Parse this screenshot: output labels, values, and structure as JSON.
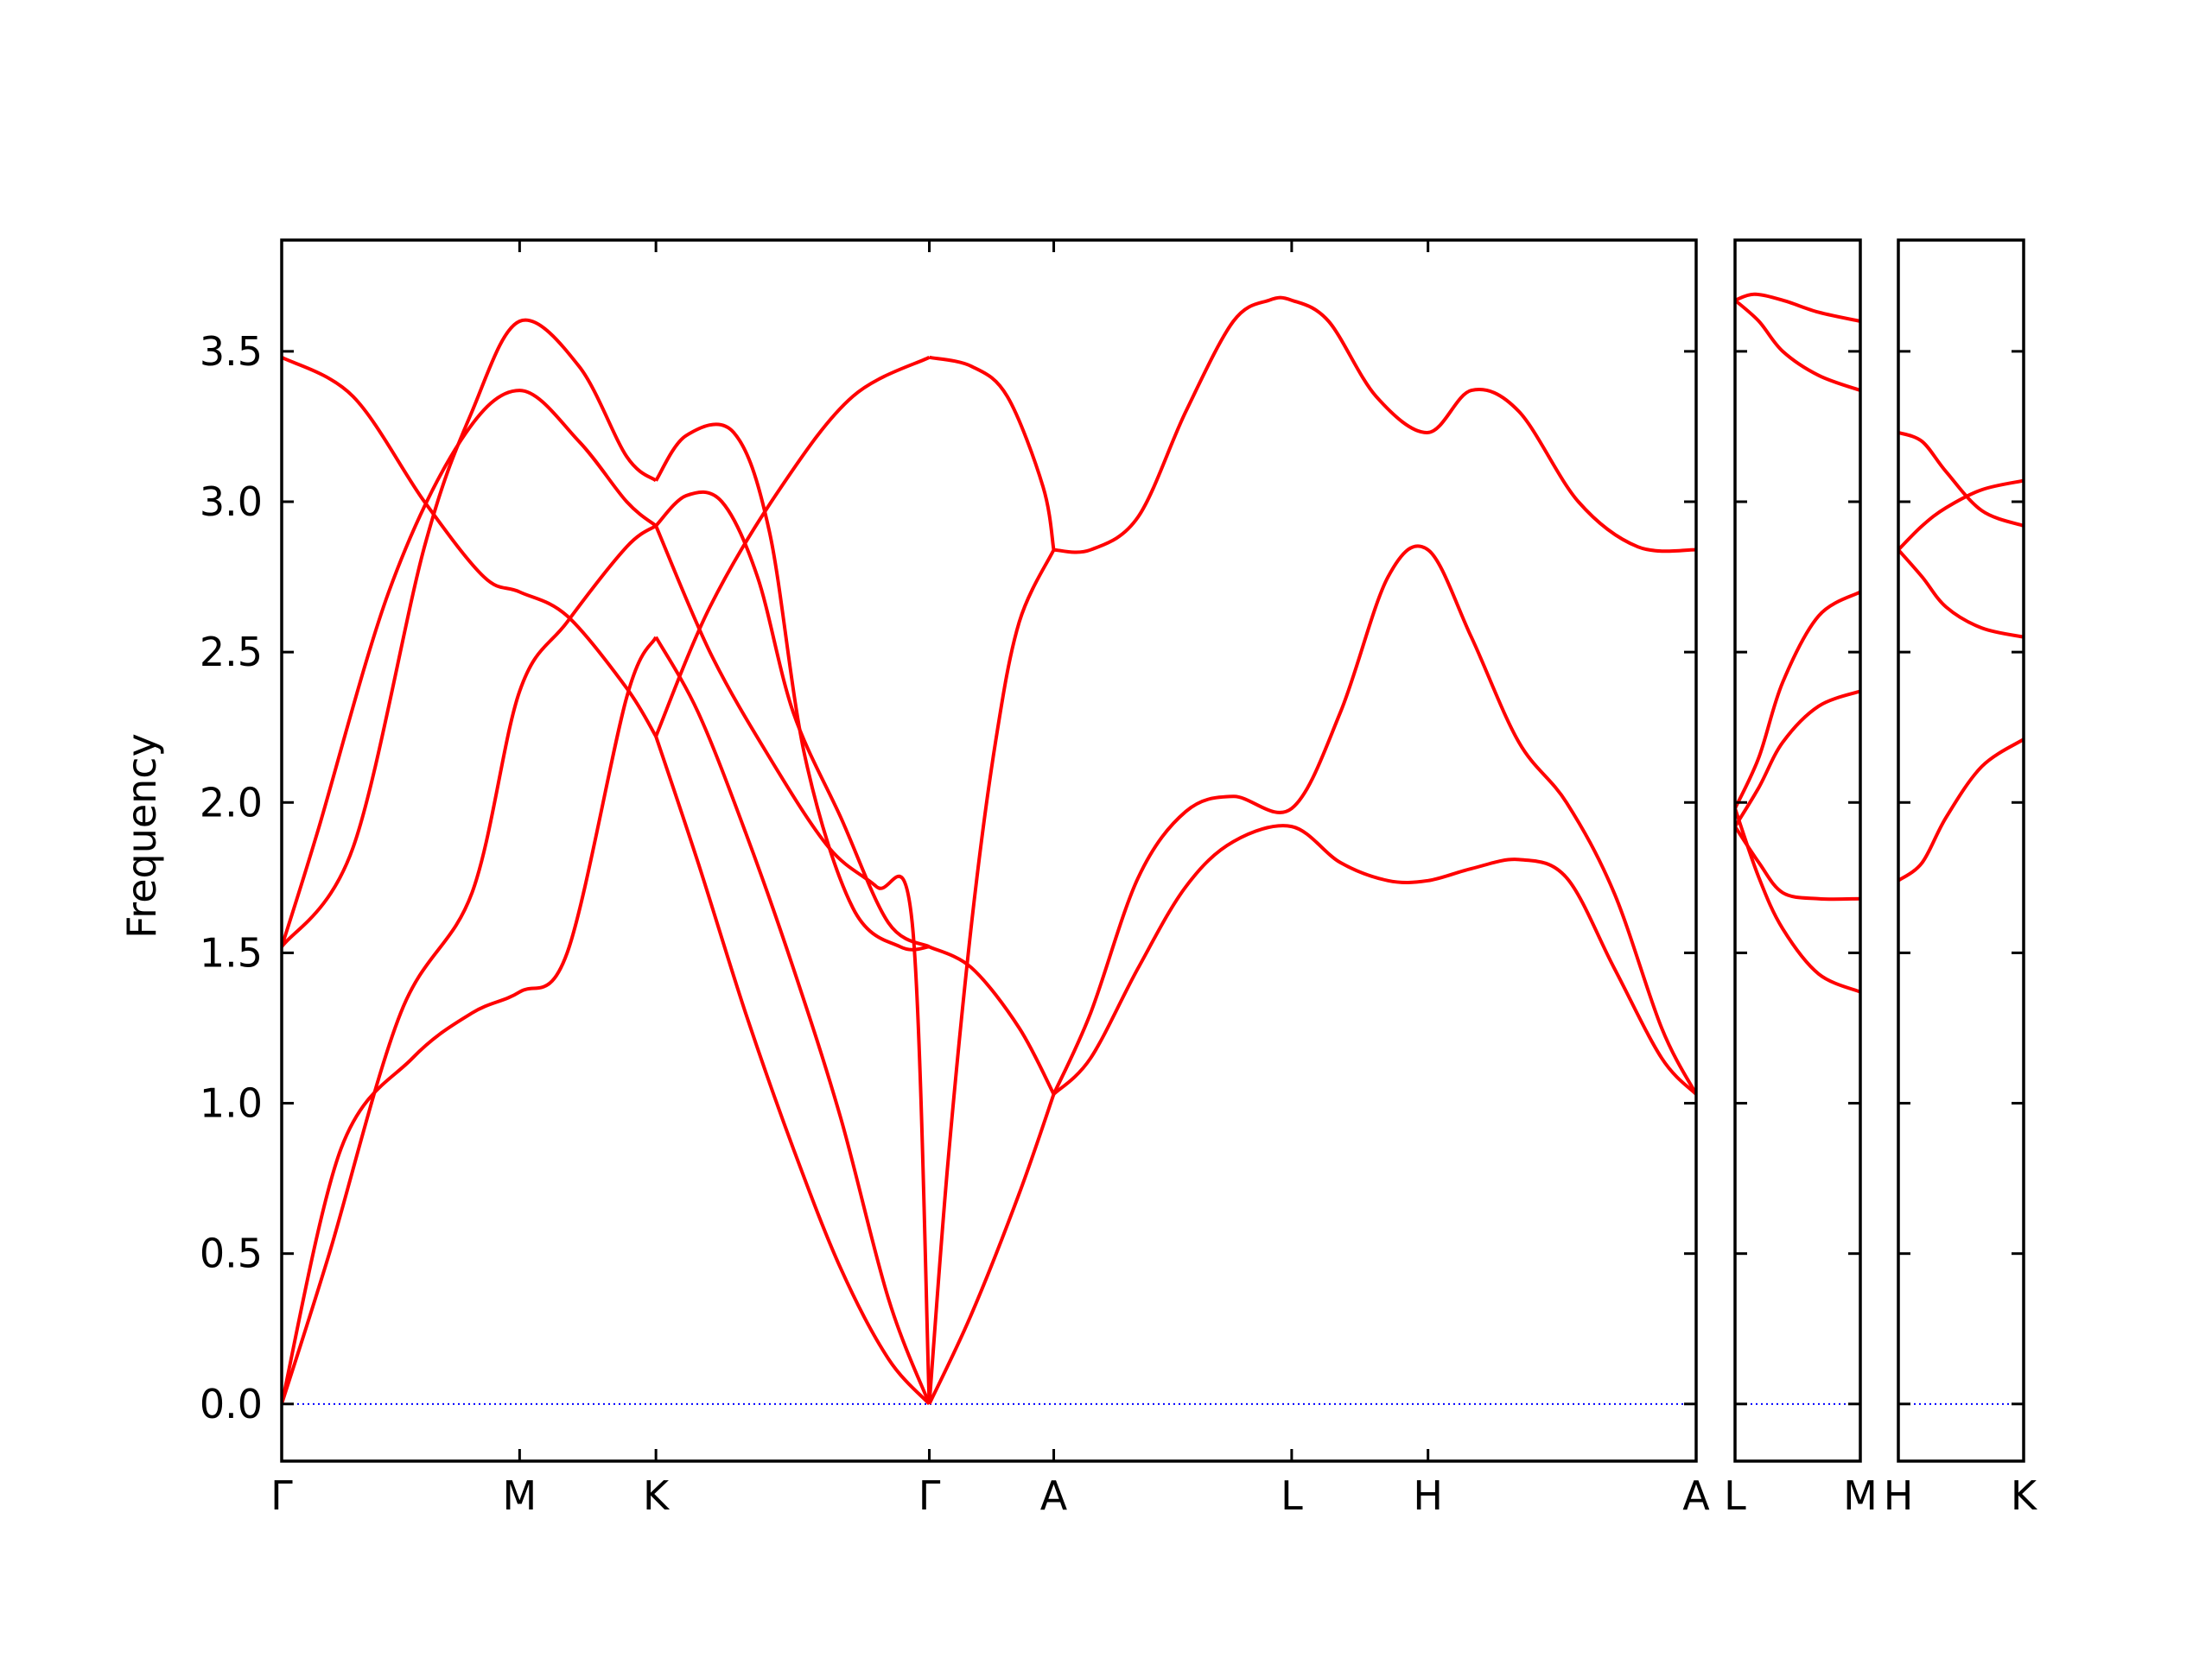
{
  "chart_data": {
    "type": "line",
    "title": "",
    "xlabel": "",
    "ylabel": "Frequency",
    "ylim": [
      -0.19,
      3.87
    ],
    "yticks": [
      0.0,
      0.5,
      1.0,
      1.5,
      2.0,
      2.5,
      3.0,
      3.5
    ],
    "ytick_labels": [
      "0.0",
      "0.5",
      "1.0",
      "1.5",
      "2.0",
      "2.5",
      "3.0",
      "3.5"
    ],
    "band_color": "#ff0000",
    "zero_line_color": "#0000ff",
    "panels": [
      {
        "x_range": [
          0,
          5.945
        ],
        "ticks": [
          {
            "x": 0,
            "label": "Γ"
          },
          {
            "x": 1.0,
            "label": "M"
          },
          {
            "x": 1.573,
            "label": "K"
          },
          {
            "x": 2.722,
            "label": "Γ"
          },
          {
            "x": 3.245,
            "label": "A"
          },
          {
            "x": 4.245,
            "label": "L"
          },
          {
            "x": 4.818,
            "label": "H"
          },
          {
            "x": 5.945,
            "label": "A"
          }
        ],
        "series": [
          {
            "x": [
              0,
              0.2,
              0.5,
              0.8,
              1.0,
              1.2,
              1.45,
              1.573
            ],
            "y": [
              0,
              0.5,
              1.3,
              1.7,
              2.37,
              2.6,
              2.85,
              2.92
            ]
          },
          {
            "x": [
              0,
              0.3,
              0.6,
              0.8,
              1.0,
              1.25,
              1.45,
              1.573
            ],
            "y": [
              1.52,
              1.85,
              2.85,
              3.3,
              3.6,
              3.45,
              3.15,
              3.07
            ]
          },
          {
            "x": [
              0,
              0.15,
              0.45,
              0.75,
              1.0,
              1.25,
              1.45,
              1.573
            ],
            "y": [
              1.52,
              1.9,
              2.7,
              3.2,
              3.37,
              3.2,
              3.0,
              2.92
            ]
          },
          {
            "x": [
              0,
              0.25,
              0.55,
              0.8,
              1.0,
              1.2,
              1.45,
              1.573
            ],
            "y": [
              0,
              0.85,
              1.15,
              1.3,
              1.37,
              1.5,
              2.35,
              2.55
            ]
          },
          {
            "x": [
              0,
              0.3,
              0.6,
              0.85,
              1.0,
              1.2,
              1.45,
              1.573
            ],
            "y": [
              3.48,
              3.35,
              3.0,
              2.75,
              2.7,
              2.62,
              2.38,
              2.22
            ]
          },
          {
            "x": [
              1.573,
              1.7,
              1.9,
              2.05,
              2.2,
              2.4,
              2.6,
              2.722
            ],
            "y": [
              3.07,
              3.22,
              3.23,
              2.9,
              2.15,
              1.65,
              1.52,
              1.52
            ]
          },
          {
            "x": [
              1.573,
              1.7,
              1.85,
              2.0,
              2.15,
              2.35,
              2.55,
              2.722
            ],
            "y": [
              2.92,
              3.02,
              3.0,
              2.75,
              2.3,
              1.95,
              1.6,
              1.52
            ]
          },
          {
            "x": [
              1.573,
              1.75,
              1.95,
              2.15,
              2.35,
              2.55,
              2.722
            ],
            "y": [
              2.55,
              2.3,
              1.9,
              1.45,
              0.95,
              0.35,
              0
            ]
          },
          {
            "x": [
              1.573,
              1.75,
              1.95,
              2.15,
              2.35,
              2.55,
              2.722
            ],
            "y": [
              2.22,
              1.8,
              1.3,
              0.85,
              0.45,
              0.15,
              0
            ]
          },
          {
            "x": [
              1.573,
              1.8,
              2.05,
              2.3,
              2.5,
              2.65,
              2.722
            ],
            "y": [
              2.92,
              2.5,
              2.15,
              1.85,
              1.72,
              1.6,
              0
            ]
          },
          {
            "x": [
              1.573,
              1.8,
              2.1,
              2.4,
              2.722
            ],
            "y": [
              2.22,
              2.65,
              3.05,
              3.35,
              3.48
            ]
          },
          {
            "x": [
              2.722,
              2.9,
              3.05,
              3.2,
              3.245
            ],
            "y": [
              3.48,
              3.45,
              3.35,
              3.05,
              2.84
            ]
          },
          {
            "x": [
              2.722,
              2.9,
              3.1,
              3.245
            ],
            "y": [
              1.52,
              1.45,
              1.25,
              1.03
            ]
          },
          {
            "x": [
              2.722,
              2.8,
              2.9,
              3.0,
              3.1,
              3.245
            ],
            "y": [
              0,
              0.8,
              1.6,
              2.2,
              2.6,
              2.84
            ]
          },
          {
            "x": [
              2.722,
              2.9,
              3.1,
              3.245
            ],
            "y": [
              0,
              0.3,
              0.7,
              1.03
            ]
          },
          {
            "x": [
              3.245,
              3.4,
              3.6,
              3.8,
              4.0,
              4.15,
              4.245,
              4.4,
              4.6,
              4.818,
              5.0,
              5.2,
              5.45,
              5.7,
              5.945
            ],
            "y": [
              2.84,
              2.84,
              2.95,
              3.3,
              3.6,
              3.67,
              3.67,
              3.6,
              3.35,
              3.23,
              3.37,
              3.3,
              3.0,
              2.85,
              2.84
            ]
          },
          {
            "x": [
              3.245,
              3.4,
              3.6,
              3.8,
              4.0,
              4.245,
              4.45,
              4.65,
              4.818,
              5.0,
              5.2,
              5.4,
              5.6,
              5.8,
              5.945
            ],
            "y": [
              1.03,
              1.3,
              1.75,
              1.97,
              2.02,
              1.98,
              2.3,
              2.75,
              2.84,
              2.55,
              2.2,
              2.0,
              1.7,
              1.25,
              1.03
            ]
          },
          {
            "x": [
              3.245,
              3.4,
              3.6,
              3.8,
              4.0,
              4.245,
              4.45,
              4.65,
              4.818,
              5.0,
              5.2,
              5.4,
              5.6,
              5.8,
              5.945
            ],
            "y": [
              1.03,
              1.15,
              1.45,
              1.72,
              1.87,
              1.92,
              1.8,
              1.74,
              1.74,
              1.78,
              1.81,
              1.75,
              1.45,
              1.15,
              1.03
            ]
          }
        ]
      },
      {
        "x_range": [
          0,
          0.525
        ],
        "ticks": [
          {
            "x": 0,
            "label": "L"
          },
          {
            "x": 0.525,
            "label": "M"
          }
        ],
        "series": [
          {
            "x": [
              0,
              0.08,
              0.2,
              0.35,
              0.525
            ],
            "y": [
              3.67,
              3.69,
              3.67,
              3.63,
              3.6
            ]
          },
          {
            "x": [
              0,
              0.1,
              0.2,
              0.35,
              0.525
            ],
            "y": [
              3.67,
              3.6,
              3.5,
              3.42,
              3.37
            ]
          },
          {
            "x": [
              0,
              0.1,
              0.2,
              0.35,
              0.525
            ],
            "y": [
              1.98,
              2.15,
              2.4,
              2.62,
              2.7
            ]
          },
          {
            "x": [
              0,
              0.1,
              0.2,
              0.35,
              0.525
            ],
            "y": [
              1.92,
              2.05,
              2.2,
              2.32,
              2.37
            ]
          },
          {
            "x": [
              0,
              0.1,
              0.2,
              0.35,
              0.525
            ],
            "y": [
              1.92,
              1.8,
              1.7,
              1.68,
              1.68
            ]
          },
          {
            "x": [
              0,
              0.1,
              0.2,
              0.35,
              0.525
            ],
            "y": [
              1.98,
              1.75,
              1.58,
              1.43,
              1.37
            ]
          }
        ]
      },
      {
        "x_range": [
          0,
          0.525
        ],
        "ticks": [
          {
            "x": 0,
            "label": "H"
          },
          {
            "x": 0.525,
            "label": "K"
          }
        ],
        "series": [
          {
            "x": [
              0,
              0.1,
              0.2,
              0.35,
              0.525
            ],
            "y": [
              3.23,
              3.2,
              3.1,
              2.97,
              2.92
            ]
          },
          {
            "x": [
              0,
              0.1,
              0.2,
              0.35,
              0.525
            ],
            "y": [
              2.84,
              2.92,
              2.98,
              3.04,
              3.07
            ]
          },
          {
            "x": [
              0,
              0.1,
              0.2,
              0.35,
              0.525
            ],
            "y": [
              2.84,
              2.75,
              2.65,
              2.58,
              2.55
            ]
          },
          {
            "x": [
              0,
              0.1,
              0.2,
              0.35,
              0.525
            ],
            "y": [
              1.74,
              1.8,
              1.95,
              2.12,
              2.21
            ]
          }
        ]
      }
    ]
  }
}
